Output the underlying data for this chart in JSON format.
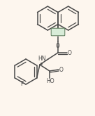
{
  "bg_color": "#fdf6ee",
  "line_color": "#4a4a4a",
  "line_width": 1.1,
  "figsize": [
    1.36,
    1.65
  ],
  "dpi": 100,
  "xlim": [
    0,
    136
  ],
  "ylim": [
    0,
    165
  ]
}
